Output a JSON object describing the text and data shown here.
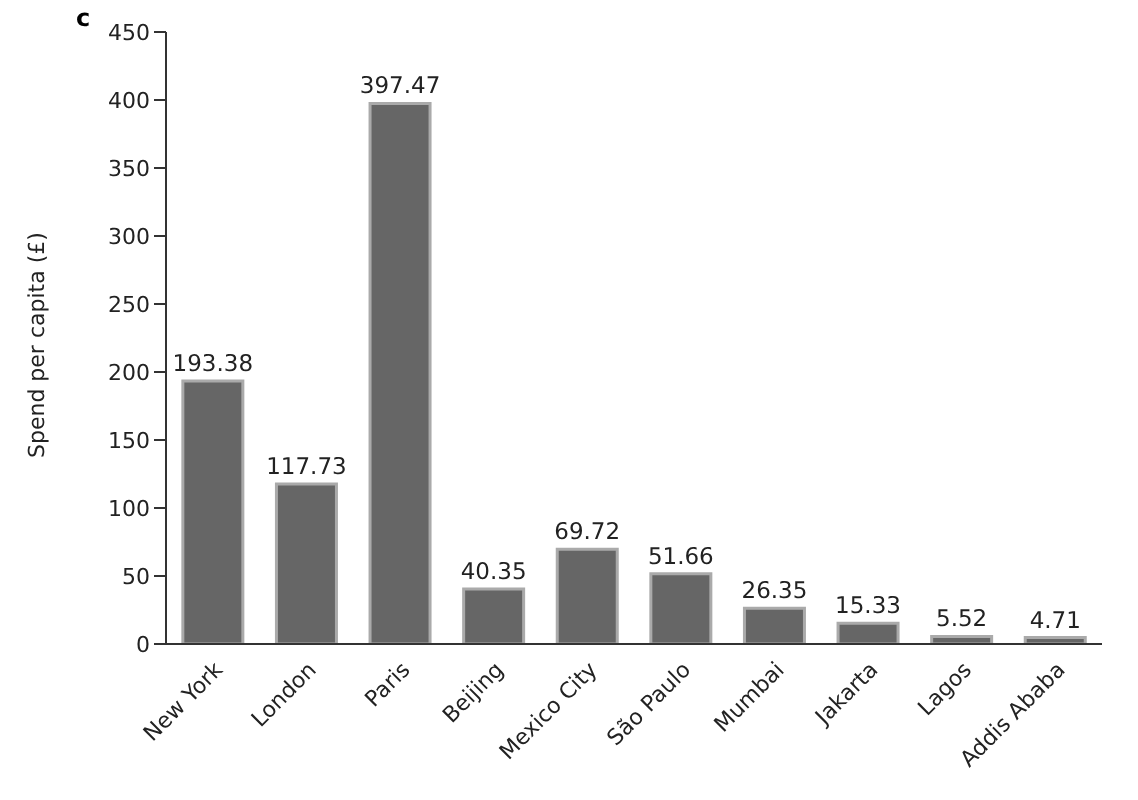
{
  "chart_data": {
    "type": "bar",
    "ylabel": "Spend per capita (£)",
    "annotations": [
      "c"
    ],
    "categories": [
      "New York",
      "London",
      "Paris",
      "Beijing",
      "Mexico City",
      "São Paulo",
      "Mumbai",
      "Jakarta",
      "Lagos",
      "Addis Ababa"
    ],
    "values": [
      193.38,
      117.73,
      397.47,
      40.35,
      69.72,
      51.66,
      26.35,
      15.33,
      5.52,
      4.71
    ],
    "color": "#666666",
    "ylim": [
      0,
      450
    ],
    "yticks": [
      0,
      50,
      100,
      150,
      200,
      250,
      300,
      350,
      400,
      450
    ],
    "data_labels": true,
    "grid": false,
    "legend": false
  }
}
